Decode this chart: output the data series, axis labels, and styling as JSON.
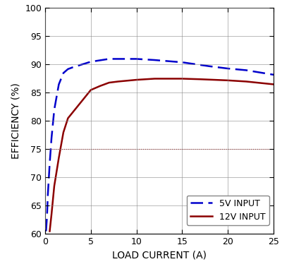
{
  "xlabel": "LOAD CURRENT (A)",
  "ylabel": "EFFICIENCY (%)",
  "xlim": [
    0,
    25
  ],
  "ylim": [
    60,
    100
  ],
  "xticks": [
    0,
    5,
    10,
    15,
    20,
    25
  ],
  "yticks": [
    60,
    65,
    70,
    75,
    80,
    85,
    90,
    95,
    100
  ],
  "curve_5v": {
    "x": [
      0.1,
      0.2,
      0.3,
      0.5,
      0.7,
      1.0,
      1.5,
      2.0,
      2.5,
      3.0,
      4.0,
      5.0,
      7.0,
      10.0,
      12.0,
      15.0,
      18.0,
      20.0,
      22.0,
      25.0
    ],
    "y": [
      60.5,
      63.0,
      67.0,
      72.5,
      77.0,
      82.0,
      86.5,
      88.5,
      89.2,
      89.5,
      90.0,
      90.5,
      91.0,
      91.0,
      90.8,
      90.4,
      89.7,
      89.3,
      89.0,
      88.2
    ],
    "color": "#0000CC",
    "linewidth": 1.8,
    "label": "5V INPUT"
  },
  "curve_12v": {
    "x": [
      0.5,
      0.7,
      1.0,
      1.5,
      2.0,
      2.5,
      3.0,
      4.0,
      5.0,
      6.0,
      7.0,
      8.0,
      10.0,
      12.0,
      14.0,
      15.0,
      17.0,
      20.0,
      22.0,
      25.0
    ],
    "y": [
      60.5,
      63.5,
      68.5,
      73.5,
      78.0,
      80.5,
      81.5,
      83.5,
      85.5,
      86.2,
      86.8,
      87.0,
      87.3,
      87.5,
      87.5,
      87.5,
      87.4,
      87.2,
      87.0,
      86.5
    ],
    "color": "#8B0000",
    "linewidth": 1.8,
    "label": "12V INPUT"
  },
  "hline_y": 75,
  "hline_color": "#CC0000",
  "background_color": "#ffffff",
  "grid_color": "#888888",
  "grid_linewidth": 0.5,
  "legend_fontsize": 9,
  "axis_fontsize": 10,
  "tick_fontsize": 9
}
